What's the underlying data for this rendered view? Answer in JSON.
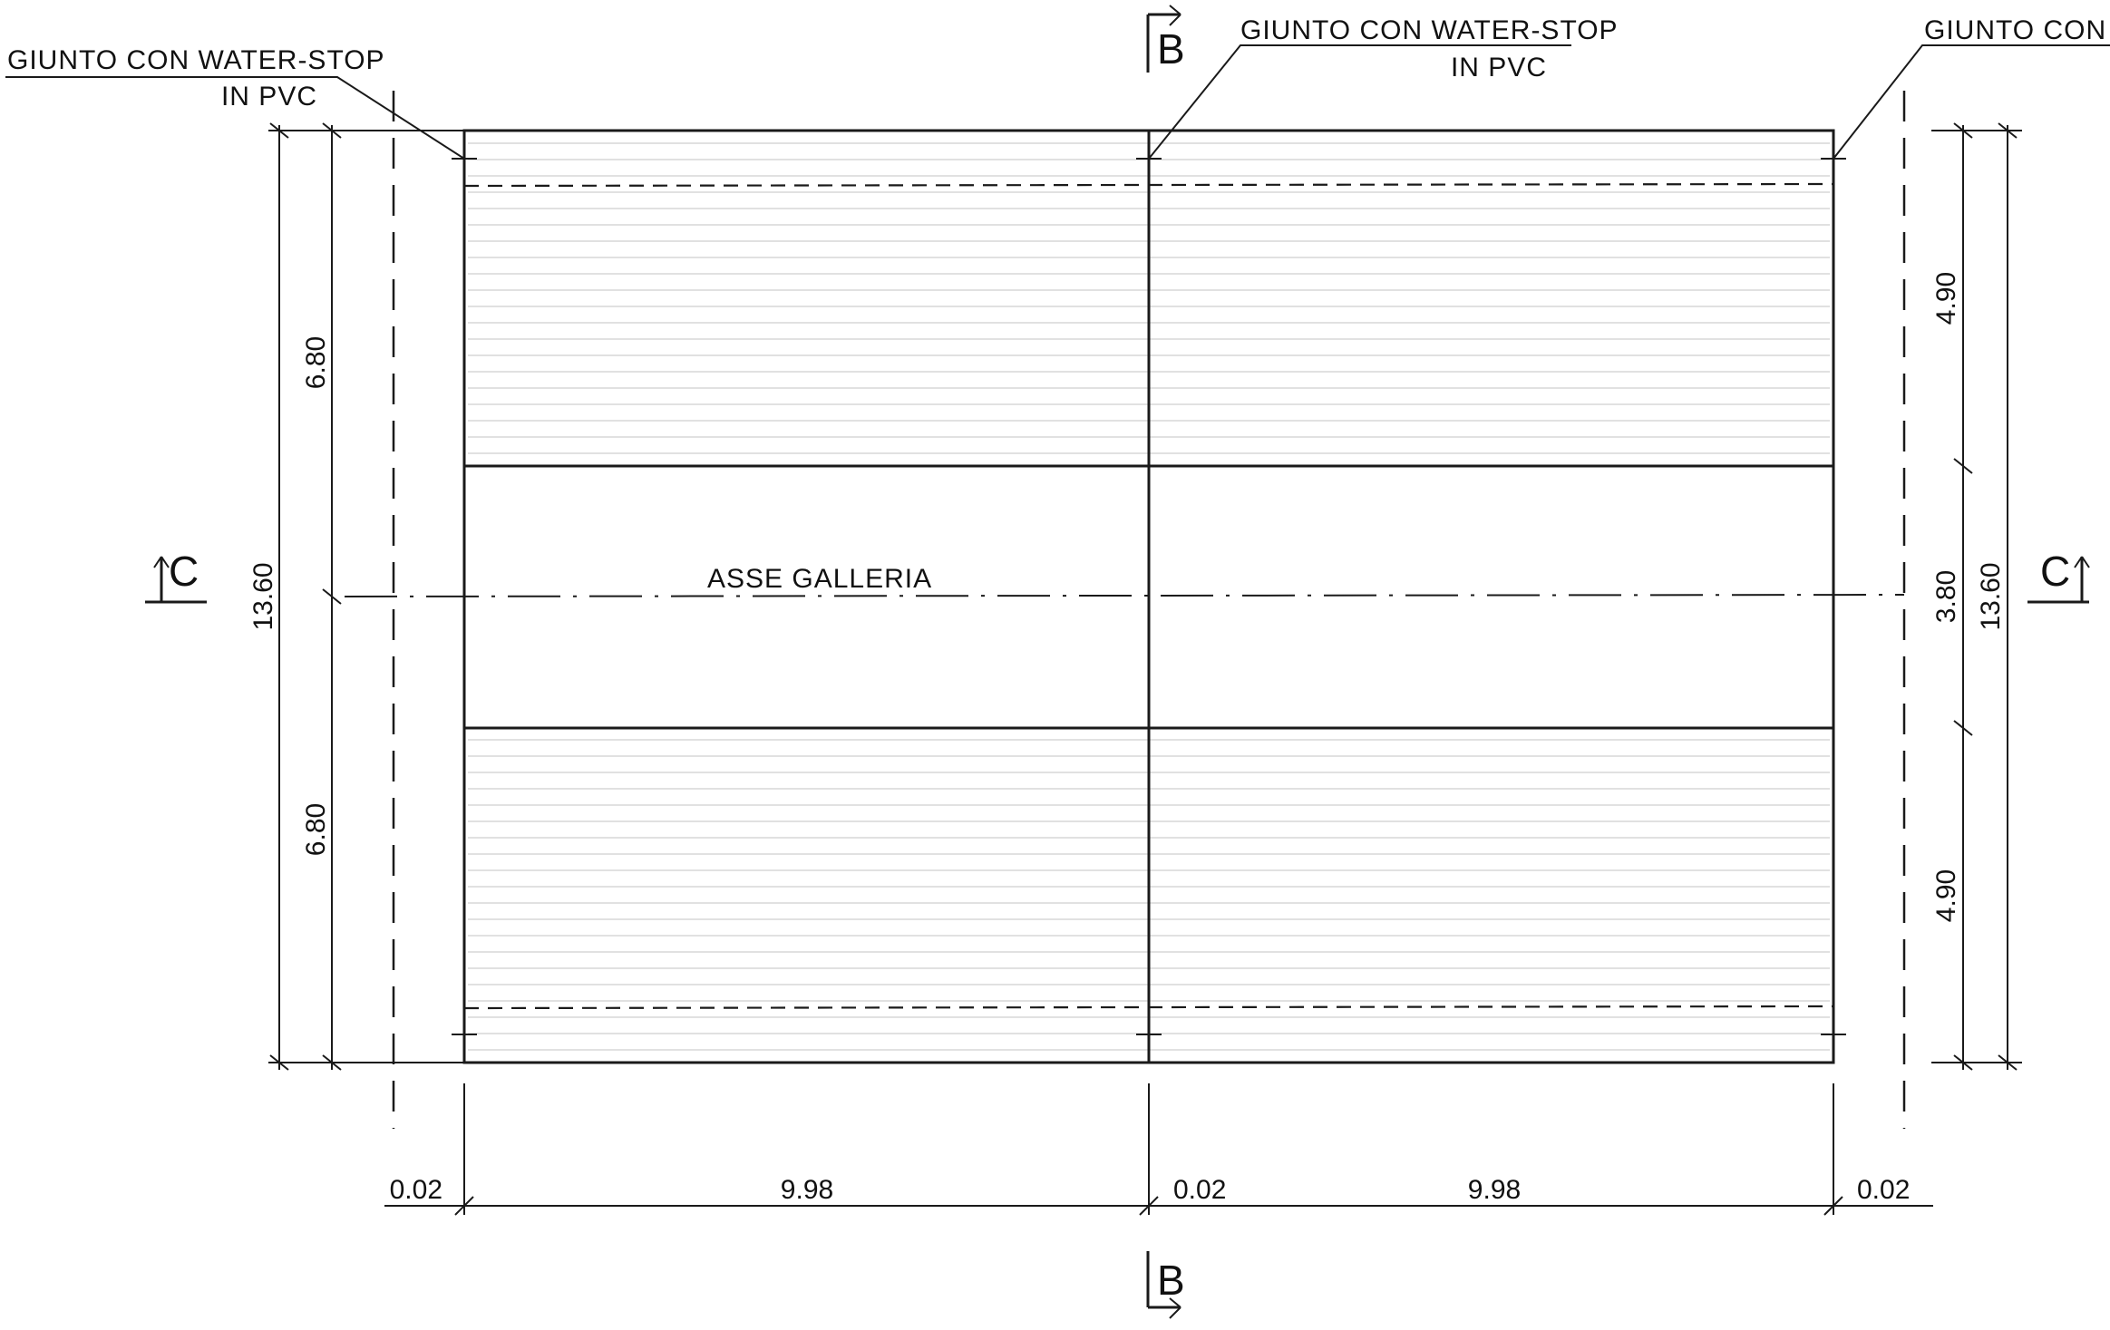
{
  "labels": {
    "joint_line1": "GIUNTO CON WATER-STOP",
    "joint_line2": "IN PVC",
    "joint_cut": "GIUNTO CON WA",
    "axis": "ASSE GALLERIA"
  },
  "sections": {
    "b_top": "B",
    "b_bottom": "B",
    "c_left": "C",
    "c_right": "C"
  },
  "dimensions": {
    "left_upper": "6.80",
    "left_lower": "6.80",
    "left_total": "13.60",
    "right_upper": "4.90",
    "right_middle": "3.80",
    "right_lower": "4.90",
    "right_total": "13.60",
    "bottom_gap_left": "0.02",
    "bottom_span_left": "9.98",
    "bottom_gap_mid": "0.02",
    "bottom_span_right": "9.98",
    "bottom_gap_right": "0.02"
  }
}
